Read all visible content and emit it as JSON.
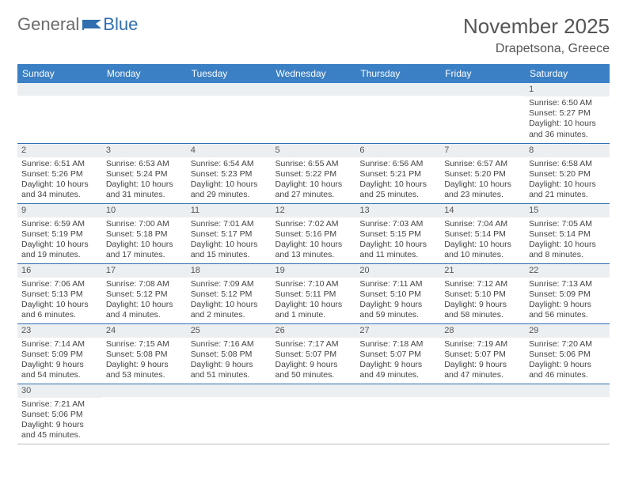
{
  "logo": {
    "part1": "General",
    "part2": "Blue"
  },
  "title": "November 2025",
  "location": "Drapetsona, Greece",
  "colors": {
    "header_bg": "#3b7fc4",
    "header_text": "#ffffff",
    "row_divider": "#2f6fb0",
    "daynum_bg": "#eceff1",
    "text": "#444444",
    "title_text": "#555555",
    "logo_gray": "#6b6b6b",
    "logo_blue": "#2f6fb0",
    "flag_fill": "#2f6fb0"
  },
  "dayNames": [
    "Sunday",
    "Monday",
    "Tuesday",
    "Wednesday",
    "Thursday",
    "Friday",
    "Saturday"
  ],
  "weeks": [
    [
      null,
      null,
      null,
      null,
      null,
      null,
      {
        "d": "1",
        "sr": "Sunrise: 6:50 AM",
        "ss": "Sunset: 5:27 PM",
        "dl1": "Daylight: 10 hours",
        "dl2": "and 36 minutes."
      }
    ],
    [
      {
        "d": "2",
        "sr": "Sunrise: 6:51 AM",
        "ss": "Sunset: 5:26 PM",
        "dl1": "Daylight: 10 hours",
        "dl2": "and 34 minutes."
      },
      {
        "d": "3",
        "sr": "Sunrise: 6:53 AM",
        "ss": "Sunset: 5:24 PM",
        "dl1": "Daylight: 10 hours",
        "dl2": "and 31 minutes."
      },
      {
        "d": "4",
        "sr": "Sunrise: 6:54 AM",
        "ss": "Sunset: 5:23 PM",
        "dl1": "Daylight: 10 hours",
        "dl2": "and 29 minutes."
      },
      {
        "d": "5",
        "sr": "Sunrise: 6:55 AM",
        "ss": "Sunset: 5:22 PM",
        "dl1": "Daylight: 10 hours",
        "dl2": "and 27 minutes."
      },
      {
        "d": "6",
        "sr": "Sunrise: 6:56 AM",
        "ss": "Sunset: 5:21 PM",
        "dl1": "Daylight: 10 hours",
        "dl2": "and 25 minutes."
      },
      {
        "d": "7",
        "sr": "Sunrise: 6:57 AM",
        "ss": "Sunset: 5:20 PM",
        "dl1": "Daylight: 10 hours",
        "dl2": "and 23 minutes."
      },
      {
        "d": "8",
        "sr": "Sunrise: 6:58 AM",
        "ss": "Sunset: 5:20 PM",
        "dl1": "Daylight: 10 hours",
        "dl2": "and 21 minutes."
      }
    ],
    [
      {
        "d": "9",
        "sr": "Sunrise: 6:59 AM",
        "ss": "Sunset: 5:19 PM",
        "dl1": "Daylight: 10 hours",
        "dl2": "and 19 minutes."
      },
      {
        "d": "10",
        "sr": "Sunrise: 7:00 AM",
        "ss": "Sunset: 5:18 PM",
        "dl1": "Daylight: 10 hours",
        "dl2": "and 17 minutes."
      },
      {
        "d": "11",
        "sr": "Sunrise: 7:01 AM",
        "ss": "Sunset: 5:17 PM",
        "dl1": "Daylight: 10 hours",
        "dl2": "and 15 minutes."
      },
      {
        "d": "12",
        "sr": "Sunrise: 7:02 AM",
        "ss": "Sunset: 5:16 PM",
        "dl1": "Daylight: 10 hours",
        "dl2": "and 13 minutes."
      },
      {
        "d": "13",
        "sr": "Sunrise: 7:03 AM",
        "ss": "Sunset: 5:15 PM",
        "dl1": "Daylight: 10 hours",
        "dl2": "and 11 minutes."
      },
      {
        "d": "14",
        "sr": "Sunrise: 7:04 AM",
        "ss": "Sunset: 5:14 PM",
        "dl1": "Daylight: 10 hours",
        "dl2": "and 10 minutes."
      },
      {
        "d": "15",
        "sr": "Sunrise: 7:05 AM",
        "ss": "Sunset: 5:14 PM",
        "dl1": "Daylight: 10 hours",
        "dl2": "and 8 minutes."
      }
    ],
    [
      {
        "d": "16",
        "sr": "Sunrise: 7:06 AM",
        "ss": "Sunset: 5:13 PM",
        "dl1": "Daylight: 10 hours",
        "dl2": "and 6 minutes."
      },
      {
        "d": "17",
        "sr": "Sunrise: 7:08 AM",
        "ss": "Sunset: 5:12 PM",
        "dl1": "Daylight: 10 hours",
        "dl2": "and 4 minutes."
      },
      {
        "d": "18",
        "sr": "Sunrise: 7:09 AM",
        "ss": "Sunset: 5:12 PM",
        "dl1": "Daylight: 10 hours",
        "dl2": "and 2 minutes."
      },
      {
        "d": "19",
        "sr": "Sunrise: 7:10 AM",
        "ss": "Sunset: 5:11 PM",
        "dl1": "Daylight: 10 hours",
        "dl2": "and 1 minute."
      },
      {
        "d": "20",
        "sr": "Sunrise: 7:11 AM",
        "ss": "Sunset: 5:10 PM",
        "dl1": "Daylight: 9 hours",
        "dl2": "and 59 minutes."
      },
      {
        "d": "21",
        "sr": "Sunrise: 7:12 AM",
        "ss": "Sunset: 5:10 PM",
        "dl1": "Daylight: 9 hours",
        "dl2": "and 58 minutes."
      },
      {
        "d": "22",
        "sr": "Sunrise: 7:13 AM",
        "ss": "Sunset: 5:09 PM",
        "dl1": "Daylight: 9 hours",
        "dl2": "and 56 minutes."
      }
    ],
    [
      {
        "d": "23",
        "sr": "Sunrise: 7:14 AM",
        "ss": "Sunset: 5:09 PM",
        "dl1": "Daylight: 9 hours",
        "dl2": "and 54 minutes."
      },
      {
        "d": "24",
        "sr": "Sunrise: 7:15 AM",
        "ss": "Sunset: 5:08 PM",
        "dl1": "Daylight: 9 hours",
        "dl2": "and 53 minutes."
      },
      {
        "d": "25",
        "sr": "Sunrise: 7:16 AM",
        "ss": "Sunset: 5:08 PM",
        "dl1": "Daylight: 9 hours",
        "dl2": "and 51 minutes."
      },
      {
        "d": "26",
        "sr": "Sunrise: 7:17 AM",
        "ss": "Sunset: 5:07 PM",
        "dl1": "Daylight: 9 hours",
        "dl2": "and 50 minutes."
      },
      {
        "d": "27",
        "sr": "Sunrise: 7:18 AM",
        "ss": "Sunset: 5:07 PM",
        "dl1": "Daylight: 9 hours",
        "dl2": "and 49 minutes."
      },
      {
        "d": "28",
        "sr": "Sunrise: 7:19 AM",
        "ss": "Sunset: 5:07 PM",
        "dl1": "Daylight: 9 hours",
        "dl2": "and 47 minutes."
      },
      {
        "d": "29",
        "sr": "Sunrise: 7:20 AM",
        "ss": "Sunset: 5:06 PM",
        "dl1": "Daylight: 9 hours",
        "dl2": "and 46 minutes."
      }
    ],
    [
      {
        "d": "30",
        "sr": "Sunrise: 7:21 AM",
        "ss": "Sunset: 5:06 PM",
        "dl1": "Daylight: 9 hours",
        "dl2": "and 45 minutes."
      },
      null,
      null,
      null,
      null,
      null,
      null
    ]
  ]
}
